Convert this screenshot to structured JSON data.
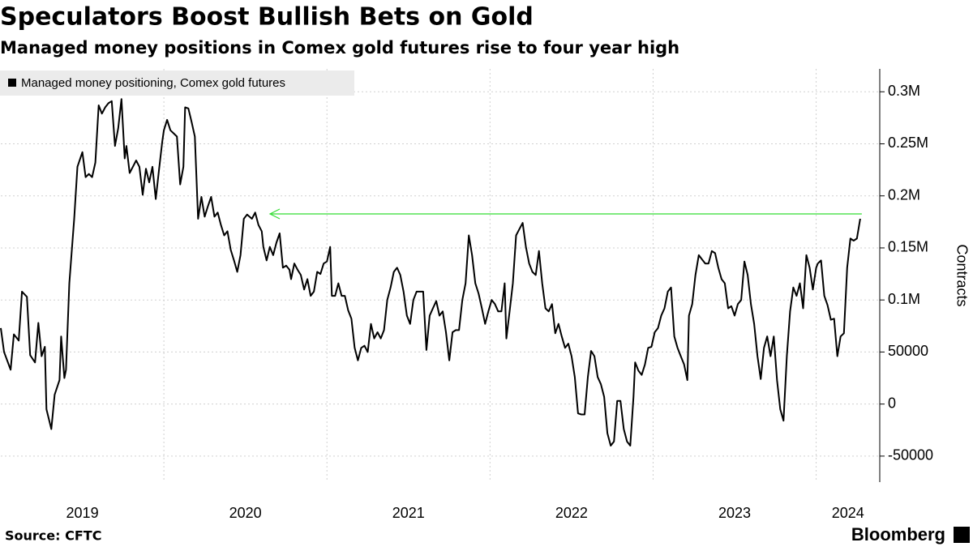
{
  "chart_data": {
    "type": "line",
    "title": "Speculators Boost Bullish Bets on Gold",
    "subtitle": "Managed money positions in Comex gold futures rise to four year high",
    "y_axis_label": "Contracts",
    "source": "Source: CFTC",
    "logo": "Bloomberg",
    "legend": "top-left",
    "grid": true,
    "xlim": [
      2019,
      2024.39
    ],
    "xticks": [
      {
        "value": 2019,
        "label": "2019"
      },
      {
        "value": 2020,
        "label": "2020"
      },
      {
        "value": 2021,
        "label": "2021"
      },
      {
        "value": 2022,
        "label": "2022"
      },
      {
        "value": 2023,
        "label": "2023"
      },
      {
        "value": 2024,
        "label": "2024"
      }
    ],
    "ylim": [
      -75000,
      322000
    ],
    "yticks": [
      -50000,
      0,
      50000,
      {
        "value": 100000,
        "label": "0.1M"
      },
      {
        "value": 150000,
        "label": "0.15M"
      },
      {
        "value": 200000,
        "label": "0.2M"
      },
      {
        "value": 250000,
        "label": "0.25M"
      },
      {
        "value": 300000,
        "label": "0.3M"
      }
    ],
    "x": [
      2019.0,
      2019.02,
      2019.06,
      2019.08,
      2019.11,
      2019.13,
      2019.16,
      2019.18,
      2019.21,
      2019.23,
      2019.25,
      2019.27,
      2019.28,
      2019.31,
      2019.33,
      2019.36,
      2019.37,
      2019.39,
      2019.4,
      2019.42,
      2019.45,
      2019.47,
      2019.5,
      2019.52,
      2019.54,
      2019.56,
      2019.58,
      2019.6,
      2019.62,
      2019.64,
      2019.66,
      2019.68,
      2019.7,
      2019.72,
      2019.74,
      2019.76,
      2019.77,
      2019.79,
      2019.81,
      2019.83,
      2019.85,
      2019.87,
      2019.89,
      2019.91,
      2019.93,
      2019.95,
      2019.97,
      2019.99,
      2020.0,
      2020.02,
      2020.04,
      2020.06,
      2020.08,
      2020.1,
      2020.12,
      2020.13,
      2020.15,
      2020.17,
      2020.19,
      2020.21,
      2020.23,
      2020.25,
      2020.27,
      2020.29,
      2020.31,
      2020.33,
      2020.35,
      2020.37,
      2020.39,
      2020.41,
      2020.43,
      2020.45,
      2020.47,
      2020.49,
      2020.51,
      2020.54,
      2020.56,
      2020.58,
      2020.6,
      2020.61,
      2020.63,
      2020.65,
      2020.67,
      2020.69,
      2020.71,
      2020.73,
      2020.75,
      2020.77,
      2020.78,
      2020.8,
      2020.82,
      2020.84,
      2020.86,
      2020.88,
      2020.9,
      2020.92,
      2020.94,
      2020.96,
      2020.98,
      2021.0,
      2021.02,
      2021.03,
      2021.05,
      2021.07,
      2021.09,
      2021.11,
      2021.13,
      2021.15,
      2021.17,
      2021.19,
      2021.21,
      2021.23,
      2021.25,
      2021.27,
      2021.29,
      2021.31,
      2021.33,
      2021.35,
      2021.37,
      2021.39,
      2021.41,
      2021.43,
      2021.45,
      2021.47,
      2021.49,
      2021.51,
      2021.53,
      2021.55,
      2021.57,
      2021.59,
      2021.61,
      2021.63,
      2021.65,
      2021.67,
      2021.69,
      2021.71,
      2021.73,
      2021.75,
      2021.77,
      2021.79,
      2021.81,
      2021.83,
      2021.85,
      2021.87,
      2021.89,
      2021.91,
      2021.93,
      2021.95,
      2021.97,
      2021.99,
      2022.01,
      2022.03,
      2022.05,
      2022.07,
      2022.09,
      2022.1,
      2022.12,
      2022.14,
      2022.16,
      2022.18,
      2022.2,
      2022.22,
      2022.24,
      2022.26,
      2022.28,
      2022.3,
      2022.32,
      2022.34,
      2022.36,
      2022.38,
      2022.4,
      2022.42,
      2022.44,
      2022.46,
      2022.48,
      2022.5,
      2022.52,
      2022.54,
      2022.56,
      2022.58,
      2022.6,
      2022.62,
      2022.64,
      2022.66,
      2022.68,
      2022.7,
      2022.72,
      2022.74,
      2022.76,
      2022.78,
      2022.8,
      2022.82,
      2022.84,
      2022.86,
      2022.88,
      2022.89,
      2022.91,
      2022.93,
      2022.95,
      2022.97,
      2022.99,
      2023.01,
      2023.03,
      2023.05,
      2023.07,
      2023.09,
      2023.11,
      2023.13,
      2023.15,
      2023.17,
      2023.19,
      2023.21,
      2023.22,
      2023.24,
      2023.26,
      2023.28,
      2023.3,
      2023.32,
      2023.34,
      2023.36,
      2023.38,
      2023.4,
      2023.42,
      2023.44,
      2023.46,
      2023.48,
      2023.5,
      2023.52,
      2023.54,
      2023.56,
      2023.58,
      2023.6,
      2023.62,
      2023.64,
      2023.66,
      2023.68,
      2023.7,
      2023.72,
      2023.74,
      2023.76,
      2023.78,
      2023.8,
      2023.82,
      2023.84,
      2023.86,
      2023.88,
      2023.9,
      2023.92,
      2023.94,
      2023.96,
      2023.98,
      2024.0,
      2024.01,
      2024.03,
      2024.05,
      2024.07,
      2024.09,
      2024.11,
      2024.13,
      2024.15,
      2024.17,
      2024.19,
      2024.21,
      2024.23,
      2024.25,
      2024.27
    ],
    "series": [
      {
        "name": "Managed money positioning, Comex gold futures",
        "color": "#000000",
        "values": [
          73000,
          50000,
          33000,
          67000,
          61000,
          108000,
          103000,
          47000,
          40000,
          78000,
          46000,
          55000,
          -5000,
          -24000,
          9000,
          23000,
          65000,
          25000,
          33000,
          116000,
          178000,
          228000,
          242000,
          218000,
          221000,
          218000,
          232000,
          287000,
          279000,
          285000,
          289000,
          291000,
          248000,
          265000,
          293000,
          236000,
          248000,
          222000,
          228000,
          234000,
          228000,
          201000,
          226000,
          213000,
          228000,
          197000,
          225000,
          252000,
          263000,
          273000,
          263000,
          260000,
          257000,
          211000,
          228000,
          285000,
          284000,
          271000,
          257000,
          178000,
          199000,
          180000,
          190000,
          199000,
          180000,
          184000,
          172000,
          162000,
          166000,
          148000,
          138000,
          127000,
          143000,
          178000,
          182000,
          178000,
          184000,
          172000,
          166000,
          151000,
          138000,
          151000,
          143000,
          155000,
          164000,
          131000,
          133000,
          129000,
          120000,
          135000,
          129000,
          124000,
          110000,
          120000,
          104000,
          108000,
          127000,
          125000,
          135000,
          137000,
          151000,
          104000,
          104000,
          116000,
          104000,
          104000,
          90000,
          82000,
          54000,
          42000,
          54000,
          56000,
          50000,
          77000,
          63000,
          69000,
          63000,
          71000,
          100000,
          112000,
          127000,
          131000,
          124000,
          108000,
          85000,
          77000,
          100000,
          108000,
          108000,
          108000,
          52000,
          85000,
          92000,
          99000,
          85000,
          89000,
          69000,
          42000,
          69000,
          71000,
          71000,
          100000,
          116000,
          162000,
          143000,
          116000,
          106000,
          92000,
          77000,
          89000,
          100000,
          96000,
          89000,
          89000,
          116000,
          63000,
          89000,
          116000,
          162000,
          168000,
          174000,
          151000,
          135000,
          127000,
          124000,
          147000,
          116000,
          92000,
          89000,
          96000,
          68000,
          77000,
          65000,
          54000,
          58000,
          46000,
          26000,
          -9000,
          -10000,
          -10000,
          26000,
          51000,
          46000,
          26000,
          19000,
          7000,
          -28000,
          -40000,
          -36000,
          3000,
          3000,
          -24000,
          -36000,
          -40000,
          7000,
          40000,
          32000,
          28000,
          38000,
          54000,
          55000,
          69000,
          73000,
          85000,
          92000,
          108000,
          112000,
          65000,
          54000,
          46000,
          38000,
          23000,
          85000,
          96000,
          124000,
          143000,
          139000,
          135000,
          135000,
          147000,
          145000,
          131000,
          120000,
          116000,
          92000,
          94000,
          85000,
          96000,
          100000,
          137000,
          124000,
          96000,
          77000,
          46000,
          24000,
          54000,
          65000,
          46000,
          65000,
          23000,
          -5000,
          -16000,
          46000,
          89000,
          112000,
          104000,
          116000,
          92000,
          143000,
          131000,
          110000,
          131000,
          135000,
          138000,
          104000,
          95000,
          81000,
          82000,
          46000,
          65000,
          68000,
          131000,
          159000,
          157000,
          159000,
          178000
        ]
      }
    ]
  }
}
